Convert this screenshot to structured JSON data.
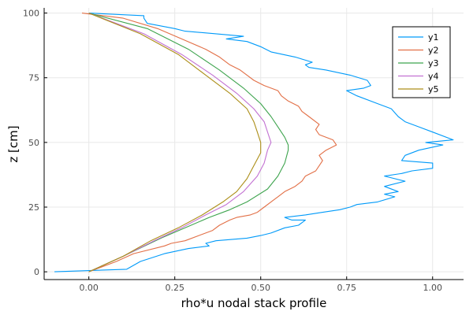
{
  "chart_data": {
    "type": "line",
    "xlabel": "rho*u nodal stack profile",
    "ylabel": "z [cm]",
    "xlim": [
      -0.13,
      1.09
    ],
    "ylim": [
      -3,
      102
    ],
    "xticks": [
      0.0,
      0.25,
      0.5,
      0.75,
      1.0
    ],
    "xtick_labels": [
      "0.00",
      "0.25",
      "0.50",
      "0.75",
      "1.00"
    ],
    "yticks": [
      0,
      25,
      50,
      75,
      100
    ],
    "ytick_labels": [
      "0",
      "25",
      "50",
      "75",
      "100"
    ],
    "grid": true,
    "legend_position": "top-right",
    "series": [
      {
        "name": "y1",
        "color": "#009af9",
        "points": [
          [
            -0.1,
            0
          ],
          [
            0.11,
            1
          ],
          [
            0.15,
            4
          ],
          [
            0.22,
            7
          ],
          [
            0.29,
            9
          ],
          [
            0.35,
            10
          ],
          [
            0.34,
            11
          ],
          [
            0.37,
            12
          ],
          [
            0.46,
            13
          ],
          [
            0.5,
            14
          ],
          [
            0.53,
            15
          ],
          [
            0.57,
            17
          ],
          [
            0.61,
            18
          ],
          [
            0.63,
            20
          ],
          [
            0.59,
            20
          ],
          [
            0.57,
            21
          ],
          [
            0.63,
            22
          ],
          [
            0.68,
            23
          ],
          [
            0.73,
            24
          ],
          [
            0.76,
            25
          ],
          [
            0.78,
            26
          ],
          [
            0.84,
            27
          ],
          [
            0.89,
            29
          ],
          [
            0.86,
            30
          ],
          [
            0.9,
            31
          ],
          [
            0.86,
            33
          ],
          [
            0.92,
            35
          ],
          [
            0.86,
            37
          ],
          [
            0.91,
            38
          ],
          [
            0.94,
            39
          ],
          [
            1.0,
            40
          ],
          [
            1.0,
            42
          ],
          [
            0.91,
            43
          ],
          [
            0.92,
            45
          ],
          [
            0.96,
            47
          ],
          [
            1.03,
            49
          ],
          [
            0.98,
            50
          ],
          [
            1.06,
            51
          ],
          [
            1.0,
            54
          ],
          [
            0.96,
            56
          ],
          [
            0.92,
            58
          ],
          [
            0.9,
            60
          ],
          [
            0.88,
            63
          ],
          [
            0.84,
            65
          ],
          [
            0.78,
            68
          ],
          [
            0.75,
            70
          ],
          [
            0.8,
            71
          ],
          [
            0.82,
            72
          ],
          [
            0.81,
            74
          ],
          [
            0.76,
            76
          ],
          [
            0.69,
            78
          ],
          [
            0.64,
            79
          ],
          [
            0.63,
            80
          ],
          [
            0.65,
            81
          ],
          [
            0.6,
            83
          ],
          [
            0.53,
            85
          ],
          [
            0.5,
            87
          ],
          [
            0.46,
            89
          ],
          [
            0.4,
            90
          ],
          [
            0.45,
            91
          ],
          [
            0.37,
            92
          ],
          [
            0.28,
            93
          ],
          [
            0.25,
            94
          ],
          [
            0.17,
            96
          ],
          [
            0.16,
            98
          ],
          [
            0.16,
            99
          ],
          [
            0.0,
            100
          ]
        ]
      },
      {
        "name": "y2",
        "color": "#e26f46",
        "points": [
          [
            0.0,
            0
          ],
          [
            0.08,
            4
          ],
          [
            0.13,
            7
          ],
          [
            0.22,
            10
          ],
          [
            0.24,
            11
          ],
          [
            0.28,
            12
          ],
          [
            0.32,
            14
          ],
          [
            0.36,
            16
          ],
          [
            0.38,
            18
          ],
          [
            0.41,
            20
          ],
          [
            0.43,
            21
          ],
          [
            0.47,
            22
          ],
          [
            0.49,
            23
          ],
          [
            0.51,
            25
          ],
          [
            0.53,
            27
          ],
          [
            0.55,
            29
          ],
          [
            0.57,
            31
          ],
          [
            0.6,
            33
          ],
          [
            0.62,
            35
          ],
          [
            0.63,
            37
          ],
          [
            0.66,
            39
          ],
          [
            0.67,
            41
          ],
          [
            0.68,
            43
          ],
          [
            0.67,
            45
          ],
          [
            0.69,
            47
          ],
          [
            0.72,
            49
          ],
          [
            0.71,
            51
          ],
          [
            0.67,
            53
          ],
          [
            0.66,
            55
          ],
          [
            0.67,
            57
          ],
          [
            0.64,
            60
          ],
          [
            0.62,
            62
          ],
          [
            0.61,
            64
          ],
          [
            0.58,
            66
          ],
          [
            0.56,
            68
          ],
          [
            0.55,
            70
          ],
          [
            0.51,
            72
          ],
          [
            0.48,
            74
          ],
          [
            0.46,
            76
          ],
          [
            0.44,
            78
          ],
          [
            0.41,
            80
          ],
          [
            0.38,
            83
          ],
          [
            0.34,
            86
          ],
          [
            0.27,
            90
          ],
          [
            0.2,
            94
          ],
          [
            0.1,
            98
          ],
          [
            -0.02,
            100
          ]
        ]
      },
      {
        "name": "y3",
        "color": "#3ea44e",
        "points": [
          [
            0.0,
            0
          ],
          [
            0.1,
            6
          ],
          [
            0.21,
            13
          ],
          [
            0.28,
            17
          ],
          [
            0.35,
            21
          ],
          [
            0.41,
            24
          ],
          [
            0.46,
            27
          ],
          [
            0.52,
            32
          ],
          [
            0.55,
            37
          ],
          [
            0.57,
            42
          ],
          [
            0.58,
            47
          ],
          [
            0.58,
            49
          ],
          [
            0.57,
            52
          ],
          [
            0.55,
            56
          ],
          [
            0.53,
            60
          ],
          [
            0.5,
            65
          ],
          [
            0.45,
            71
          ],
          [
            0.38,
            78
          ],
          [
            0.29,
            86
          ],
          [
            0.17,
            94
          ],
          [
            0.0,
            100
          ]
        ]
      },
      {
        "name": "y4",
        "color": "#c271d2",
        "points": [
          [
            0.0,
            0
          ],
          [
            0.1,
            6
          ],
          [
            0.19,
            12
          ],
          [
            0.27,
            17
          ],
          [
            0.34,
            22
          ],
          [
            0.4,
            26
          ],
          [
            0.45,
            31
          ],
          [
            0.49,
            37
          ],
          [
            0.51,
            42
          ],
          [
            0.52,
            47
          ],
          [
            0.53,
            50
          ],
          [
            0.52,
            54
          ],
          [
            0.51,
            58
          ],
          [
            0.48,
            63
          ],
          [
            0.43,
            69
          ],
          [
            0.36,
            76
          ],
          [
            0.27,
            84
          ],
          [
            0.16,
            92
          ],
          [
            0.0,
            100
          ]
        ]
      },
      {
        "name": "y5",
        "color": "#ac8e18",
        "points": [
          [
            0.0,
            0
          ],
          [
            0.1,
            6
          ],
          [
            0.18,
            12
          ],
          [
            0.26,
            17
          ],
          [
            0.33,
            22
          ],
          [
            0.39,
            27
          ],
          [
            0.43,
            31
          ],
          [
            0.46,
            36
          ],
          [
            0.48,
            41
          ],
          [
            0.5,
            46
          ],
          [
            0.5,
            50
          ],
          [
            0.49,
            54
          ],
          [
            0.48,
            58
          ],
          [
            0.46,
            63
          ],
          [
            0.41,
            69
          ],
          [
            0.34,
            76
          ],
          [
            0.26,
            84
          ],
          [
            0.15,
            92
          ],
          [
            0.0,
            100
          ]
        ]
      }
    ]
  }
}
